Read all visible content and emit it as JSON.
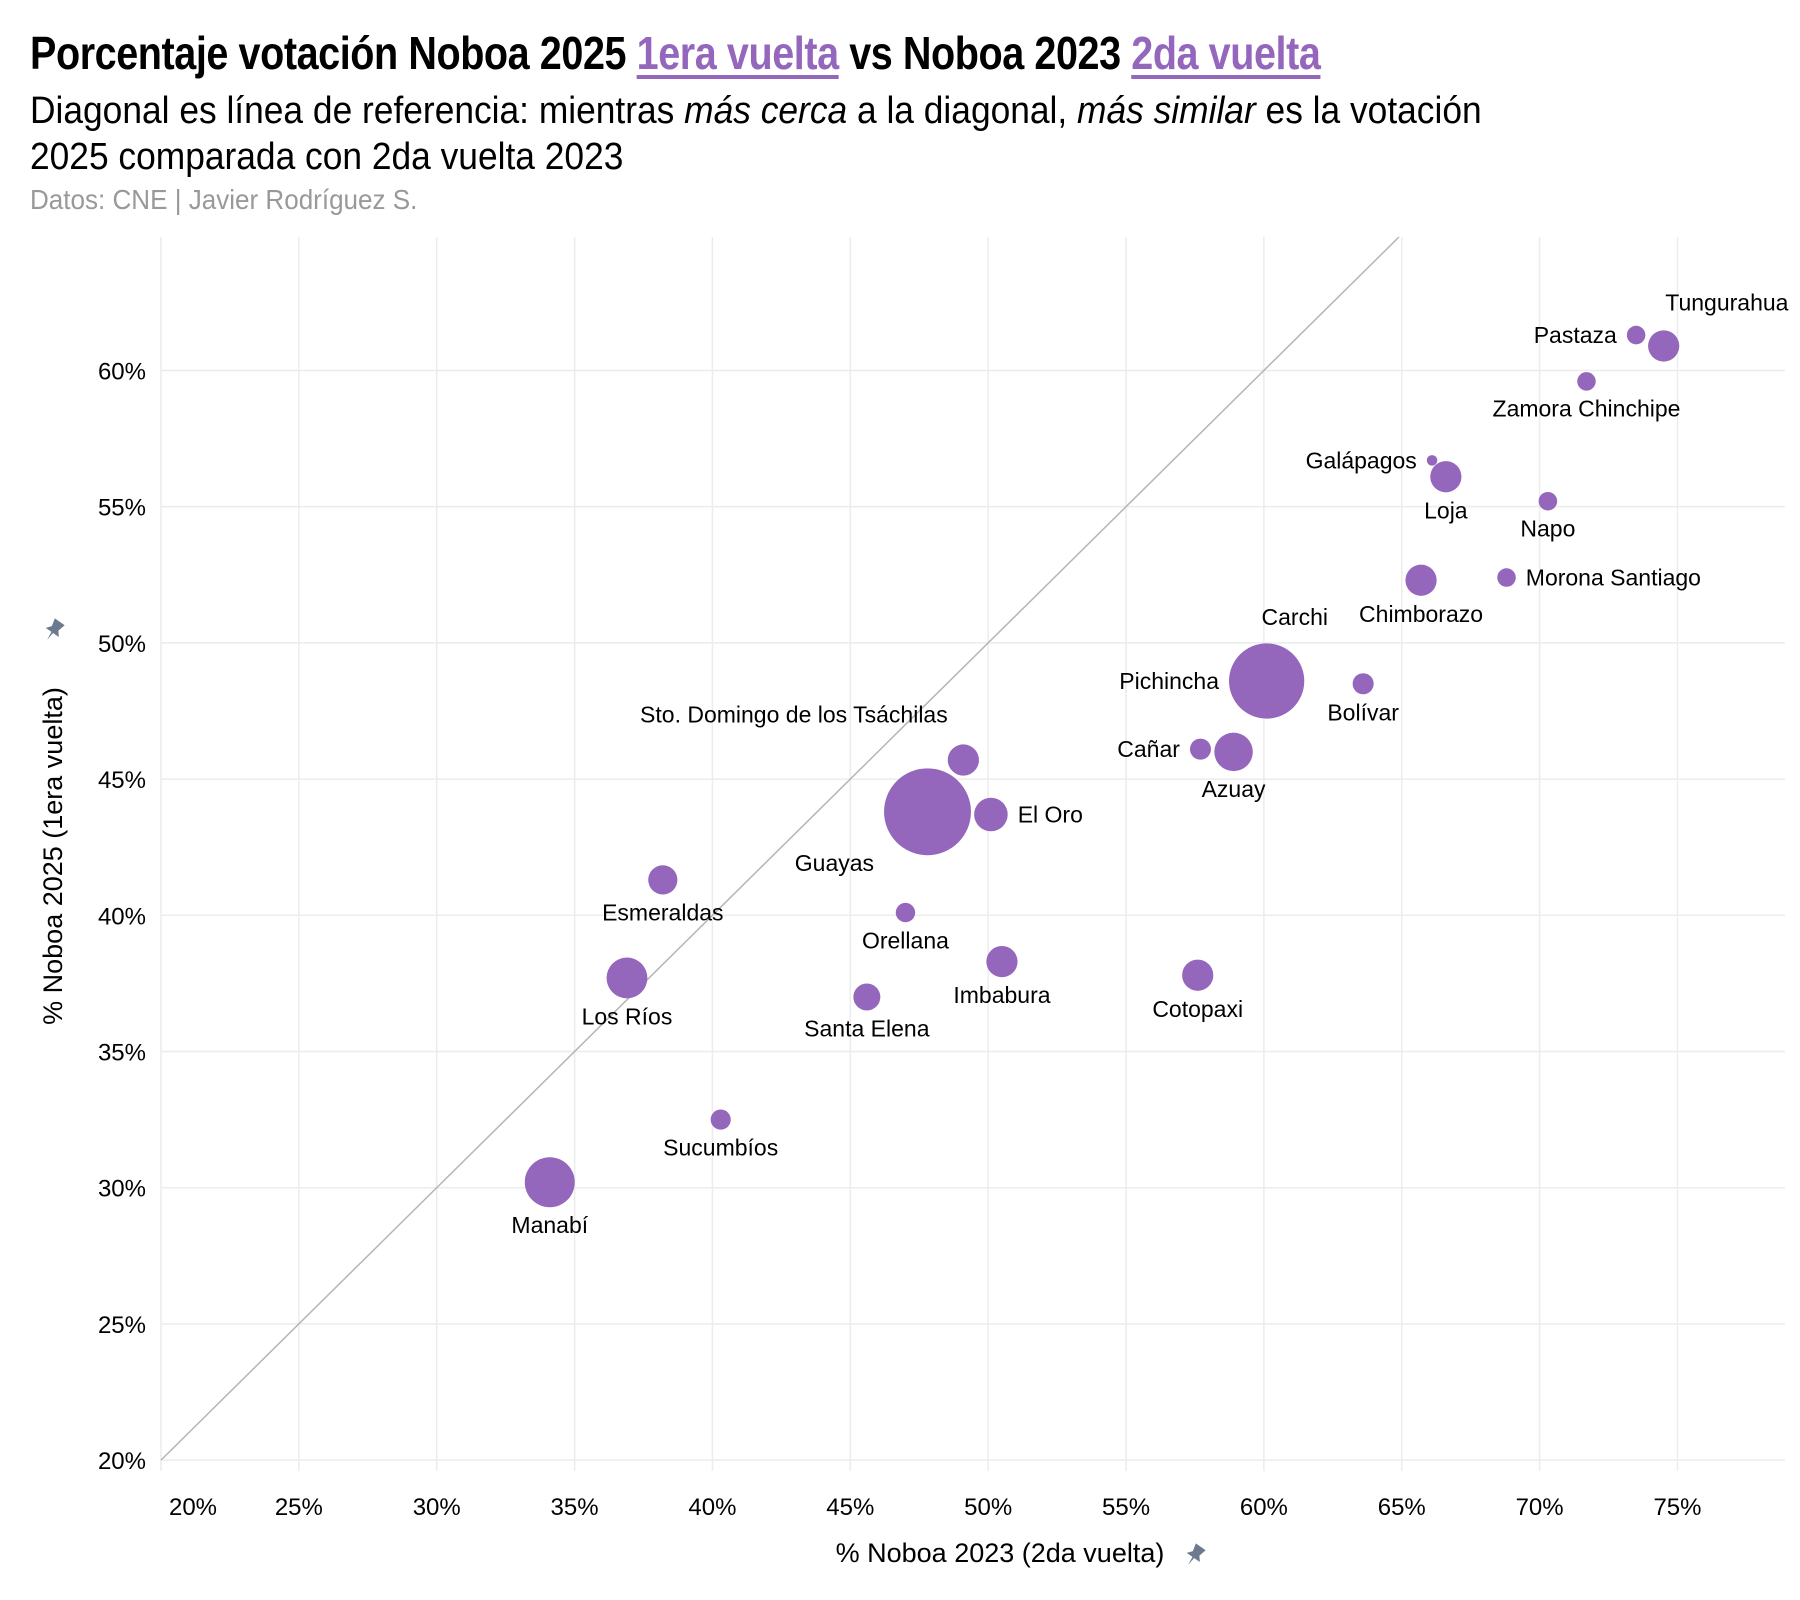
{
  "header": {
    "title_parts": [
      "Porcentaje votación Noboa 2025 ",
      "1era vuelta",
      " vs Noboa 2023 ",
      "2da vuelta"
    ],
    "subtitle_parts": [
      "Diagonal es línea de referencia: mientras ",
      "más cerca",
      " a la diagonal, ",
      "más similar",
      " es la votación",
      "2025 comparada con 2da vuelta 2023"
    ],
    "source": "Datos: CNE | Javier Rodríguez S."
  },
  "colors": {
    "point": "#9467bd",
    "accent": "#9467bd",
    "grid": "#ececec",
    "diagonal": "#b5b5b5",
    "pin": "#6b7a8f"
  },
  "chart_data": {
    "type": "scatter",
    "title": "Porcentaje votación Noboa 2025 1era vuelta vs Noboa 2023 2da vuelta",
    "xlabel": "% Noboa 2023 (2da vuelta)",
    "ylabel": "% Noboa 2025 (1era vuelta)",
    "xlim": [
      20,
      78.9
    ],
    "ylim": [
      19.6,
      64.9
    ],
    "xticks": [
      20,
      25,
      30,
      35,
      40,
      45,
      50,
      55,
      60,
      65,
      70,
      75
    ],
    "yticks": [
      20,
      25,
      30,
      35,
      40,
      45,
      50,
      55,
      60
    ],
    "tick_suffix": "%",
    "grid": true,
    "reference_line": "y = x",
    "size_legend": "relative bubble size (approx.)",
    "points": [
      {
        "name": "Tungurahua",
        "x": 74.5,
        "y": 60.9,
        "size": 140,
        "label_pos": "above-right"
      },
      {
        "name": "Pastaza",
        "x": 73.5,
        "y": 61.3,
        "size": 40,
        "label_pos": "left"
      },
      {
        "name": "Zamora Chinchipe",
        "x": 71.7,
        "y": 59.6,
        "size": 40,
        "label_pos": "below"
      },
      {
        "name": "Galápagos",
        "x": 66.1,
        "y": 56.7,
        "size": 8,
        "label_pos": "left"
      },
      {
        "name": "Loja",
        "x": 66.6,
        "y": 56.1,
        "size": 140,
        "label_pos": "below"
      },
      {
        "name": "Napo",
        "x": 70.3,
        "y": 55.2,
        "size": 40,
        "label_pos": "below"
      },
      {
        "name": "Chimborazo",
        "x": 65.7,
        "y": 52.3,
        "size": 140,
        "label_pos": "below"
      },
      {
        "name": "Morona Santiago",
        "x": 68.8,
        "y": 52.4,
        "size": 40,
        "label_pos": "right"
      },
      {
        "name": "Carchi",
        "x": 60.1,
        "y": 49.6,
        "size": 36,
        "label_pos": "above-right"
      },
      {
        "name": "Pichincha",
        "x": 60.1,
        "y": 48.6,
        "size": 960,
        "label_pos": "left"
      },
      {
        "name": "Bolívar",
        "x": 63.6,
        "y": 48.5,
        "size": 55,
        "label_pos": "below"
      },
      {
        "name": "Cañar",
        "x": 57.7,
        "y": 46.1,
        "size": 55,
        "label_pos": "left"
      },
      {
        "name": "Azuay",
        "x": 58.9,
        "y": 46.0,
        "size": 225,
        "label_pos": "below"
      },
      {
        "name": "Sto. Domingo de los Tsáchilas",
        "x": 49.1,
        "y": 45.7,
        "size": 140,
        "label_pos": "above-left"
      },
      {
        "name": "Guayas",
        "x": 47.8,
        "y": 43.8,
        "size": 1300,
        "label_pos": "below-left"
      },
      {
        "name": "El Oro",
        "x": 50.1,
        "y": 43.7,
        "size": 165,
        "label_pos": "right"
      },
      {
        "name": "Esmeraldas",
        "x": 38.2,
        "y": 41.3,
        "size": 120,
        "label_pos": "below"
      },
      {
        "name": "Orellana",
        "x": 47.0,
        "y": 40.1,
        "size": 45,
        "label_pos": "below"
      },
      {
        "name": "Imbabura",
        "x": 50.5,
        "y": 38.3,
        "size": 140,
        "label_pos": "below"
      },
      {
        "name": "Cotopaxi",
        "x": 57.6,
        "y": 37.8,
        "size": 140,
        "label_pos": "below"
      },
      {
        "name": "Los Ríos",
        "x": 36.9,
        "y": 37.7,
        "size": 256,
        "label_pos": "below"
      },
      {
        "name": "Santa Elena",
        "x": 45.6,
        "y": 37.0,
        "size": 100,
        "label_pos": "below"
      },
      {
        "name": "Sucumbíos",
        "x": 40.3,
        "y": 32.5,
        "size": 49,
        "label_pos": "below"
      },
      {
        "name": "Manabí",
        "x": 34.1,
        "y": 30.2,
        "size": 400,
        "label_pos": "below"
      }
    ]
  }
}
